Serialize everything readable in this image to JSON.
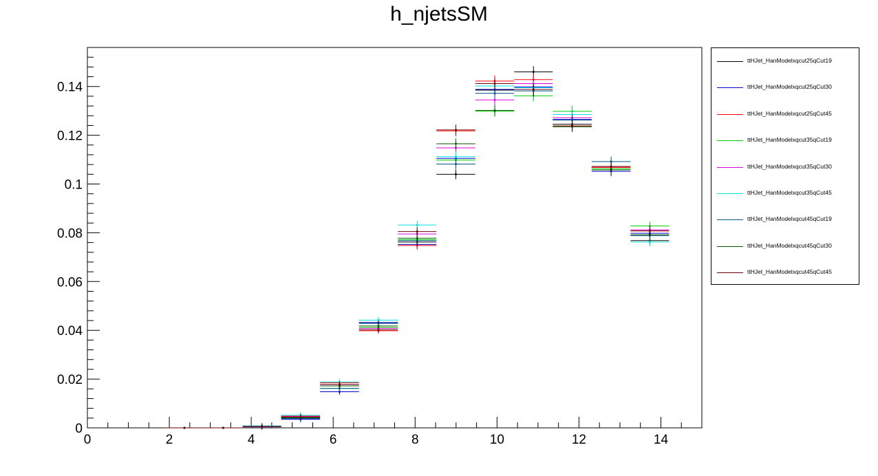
{
  "chart_data": {
    "type": "scatter",
    "title": "h_njetsSM",
    "xlabel": "",
    "ylabel": "",
    "xlim": [
      0,
      15
    ],
    "ylim": [
      0,
      0.156
    ],
    "x_ticks": [
      "0",
      "2",
      "4",
      "6",
      "8",
      "10",
      "12",
      "14"
    ],
    "y_ticks": [
      "0",
      "0.02",
      "0.04",
      "0.06",
      "0.08",
      "0.1",
      "0.12",
      "0.14"
    ],
    "grid": false,
    "legend_position": "right",
    "bin_edges": [
      1.9,
      2.84,
      3.79,
      4.73,
      5.68,
      6.63,
      7.58,
      8.52,
      9.47,
      10.42,
      11.36,
      12.31,
      13.26,
      14.2
    ],
    "series": [
      {
        "name": "ttHJet_HanModelxqcut25qCut19",
        "color": "#000000",
        "values": [
          0.0,
          0.0,
          0.0005,
          0.004,
          0.0172,
          0.0432,
          0.0762,
          0.104,
          0.1385,
          0.146,
          0.1245,
          0.1068,
          0.0768
        ]
      },
      {
        "name": "ttHJet_HanModelxqcut25qCut30",
        "color": "#0000cc",
        "values": [
          0.0,
          0.0,
          0.0005,
          0.0035,
          0.0148,
          0.0432,
          0.0752,
          0.1105,
          0.1388,
          0.1398,
          0.1265,
          0.1052,
          0.0798
        ]
      },
      {
        "name": "ttHJet_HanModelxqcut25qCut45",
        "color": "#ff0000",
        "values": [
          0.0,
          0.0,
          0.0007,
          0.0048,
          0.0185,
          0.0398,
          0.0748,
          0.1218,
          0.1422,
          0.1428,
          0.1238,
          0.1068,
          0.0808
        ]
      },
      {
        "name": "ttHJet_HanModelxqcut35qCut19",
        "color": "#00cc00",
        "values": [
          0.0,
          0.0,
          0.0006,
          0.0042,
          0.0162,
          0.0412,
          0.0772,
          0.1098,
          0.1298,
          0.1362,
          0.1298,
          0.1062,
          0.0828
        ]
      },
      {
        "name": "ttHJet_HanModelxqcut35qCut30",
        "color": "#dd00dd",
        "values": [
          0.0,
          0.0,
          0.0004,
          0.0046,
          0.0178,
          0.0408,
          0.0795,
          0.1148,
          0.1345,
          0.1412,
          0.1272,
          0.1058,
          0.0812
        ]
      },
      {
        "name": "ttHJet_HanModelxqcut35qCut45",
        "color": "#00dddd",
        "values": [
          0.0,
          0.0,
          0.0008,
          0.0052,
          0.0188,
          0.0442,
          0.0832,
          0.1112,
          0.1402,
          0.1395,
          0.1285,
          0.1072,
          0.0762
        ]
      },
      {
        "name": "ttHJet_HanModelxqcut45qCut19",
        "color": "#005588",
        "values": [
          0.0,
          0.0,
          0.0005,
          0.0038,
          0.0162,
          0.0428,
          0.0768,
          0.1082,
          0.1372,
          0.1382,
          0.1262,
          0.1092,
          0.0788
        ]
      },
      {
        "name": "ttHJet_HanModelxqcut45qCut30",
        "color": "#005500",
        "values": [
          0.0,
          0.0,
          0.0006,
          0.0044,
          0.0172,
          0.0418,
          0.0778,
          0.1165,
          0.1302,
          0.1388,
          0.1235,
          0.1058,
          0.0792
        ]
      },
      {
        "name": "ttHJet_HanModelxqcut45qCut45",
        "color": "#660000",
        "values": [
          0.0,
          0.0,
          0.0006,
          0.0044,
          0.0178,
          0.0402,
          0.0805,
          0.1222,
          0.1412,
          0.1388,
          0.1238,
          0.1072,
          0.0808
        ]
      }
    ]
  }
}
